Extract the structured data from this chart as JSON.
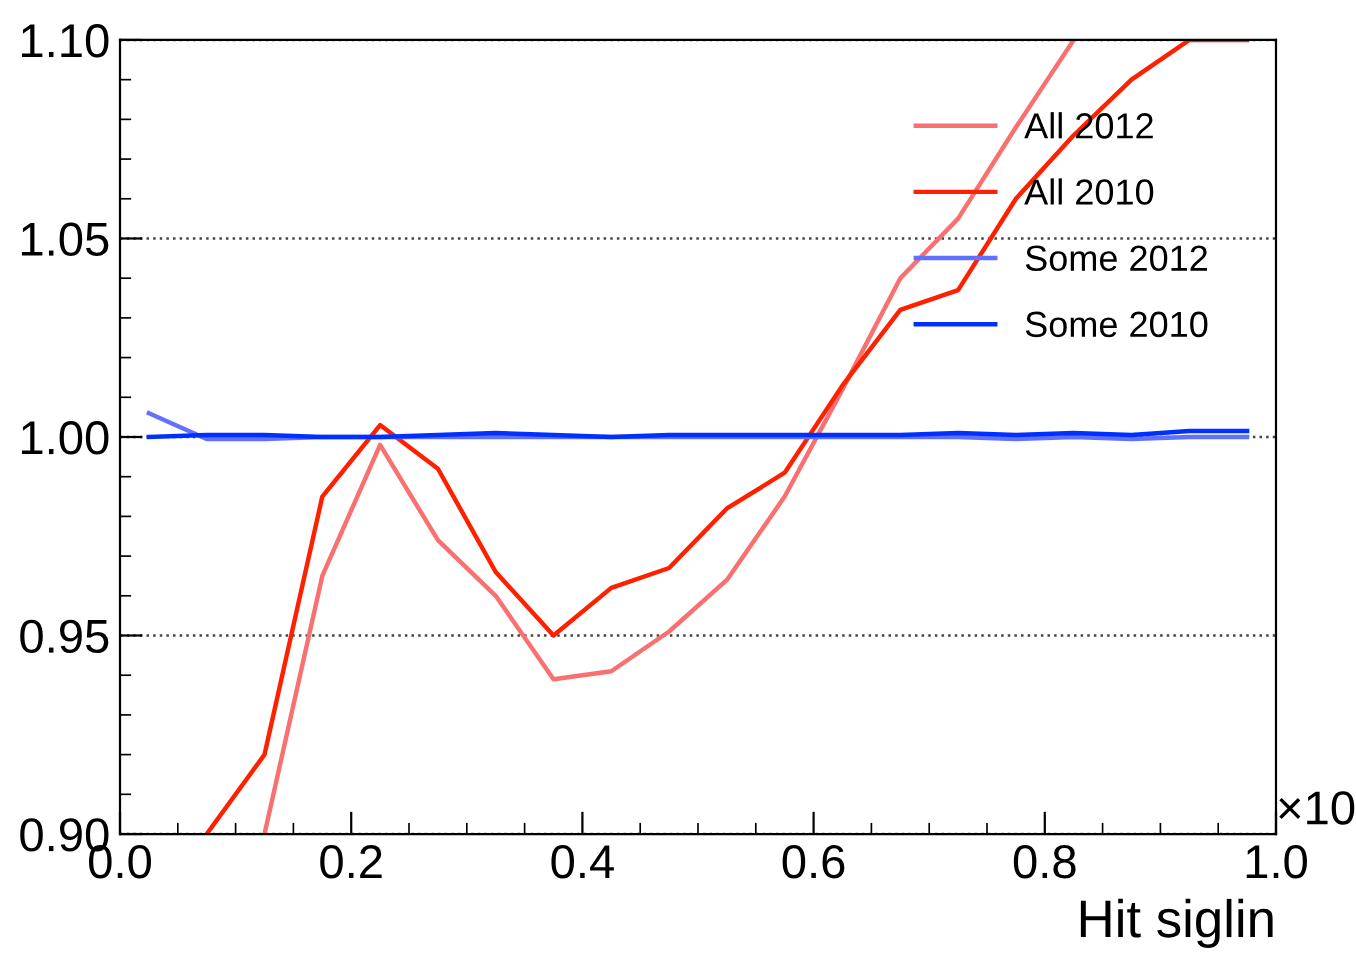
{
  "chart_data": {
    "type": "line",
    "xlabel": "Hit siglin",
    "x": [
      0.025,
      0.075,
      0.125,
      0.175,
      0.225,
      0.275,
      0.325,
      0.375,
      0.425,
      0.475,
      0.525,
      0.575,
      0.625,
      0.675,
      0.725,
      0.775,
      0.825,
      0.875,
      0.925,
      0.975
    ],
    "series": [
      {
        "name": "All 2012",
        "color": "#f87070",
        "values": [
          null,
          null,
          0.9,
          0.965,
          0.998,
          0.974,
          0.96,
          0.939,
          0.941,
          0.951,
          0.964,
          0.985,
          1.012,
          1.04,
          1.055,
          1.078,
          1.1,
          null,
          null,
          null
        ]
      },
      {
        "name": "All 2010",
        "color": "#ff2000",
        "values": [
          null,
          0.9,
          0.92,
          0.985,
          1.003,
          0.992,
          0.966,
          0.95,
          0.962,
          0.967,
          0.982,
          0.991,
          1.013,
          1.032,
          1.037,
          1.06,
          1.076,
          1.09,
          1.1,
          1.1
        ]
      },
      {
        "name": "Some 2012",
        "color": "#6070ff",
        "values": [
          1.006,
          0.9995,
          0.9995,
          1.0,
          1.0,
          1.0,
          1.0,
          1.0,
          1.0,
          1.0,
          1.0,
          1.0,
          1.0,
          1.0,
          1.0,
          0.9995,
          1.0,
          0.9995,
          1.0,
          1.0
        ]
      },
      {
        "name": "Some 2010",
        "color": "#0030ff",
        "values": [
          1.0,
          1.0005,
          1.0005,
          1.0,
          1.0,
          1.0005,
          1.001,
          1.0005,
          1.0,
          1.0005,
          1.0005,
          1.0005,
          1.0005,
          1.0005,
          1.001,
          1.0005,
          1.001,
          1.0005,
          1.0015,
          1.0015
        ]
      }
    ],
    "xlim": [
      0,
      1
    ],
    "ylim": [
      0.9,
      1.1
    ],
    "xticks": [
      {
        "value": 0,
        "label": "0.0"
      },
      0.2,
      0.4,
      0.6,
      0.8,
      {
        "value": 1,
        "label": "1.0"
      }
    ],
    "yticks": [
      {
        "value": 0.9,
        "label": "0.90"
      },
      0.95,
      {
        "value": 1.0,
        "label": "1.00"
      },
      1.05,
      {
        "value": 1.1,
        "label": "1.10"
      }
    ],
    "grid": "y",
    "legend": "top right",
    "line_style": "solid",
    "marker": "none",
    "annotations": [
      "×10"
    ]
  }
}
